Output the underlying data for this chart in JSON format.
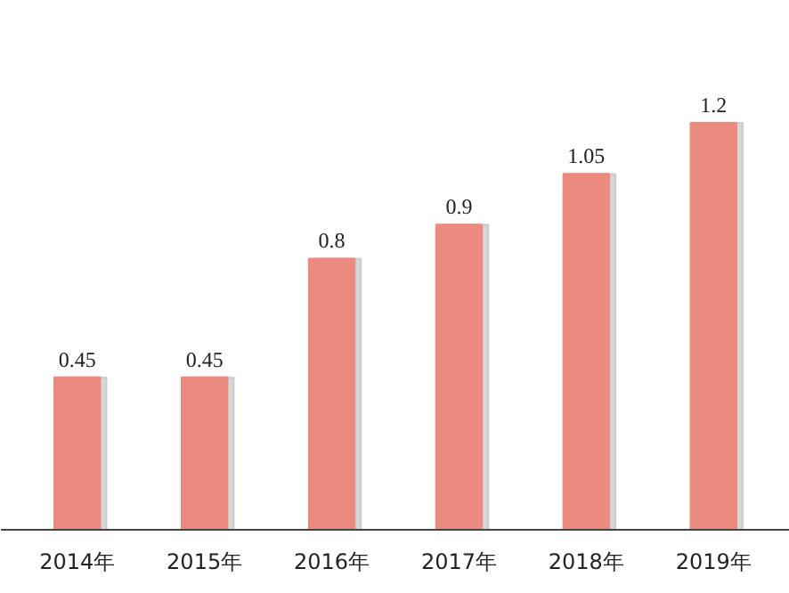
{
  "chart_data": {
    "type": "bar",
    "categories": [
      "2014年",
      "2015年",
      "2016年",
      "2017年",
      "2018年",
      "2019年"
    ],
    "values": [
      0.45,
      0.45,
      0.8,
      0.9,
      1.05,
      1.2
    ],
    "color": "#eb8a7e",
    "data_labels": true
  }
}
